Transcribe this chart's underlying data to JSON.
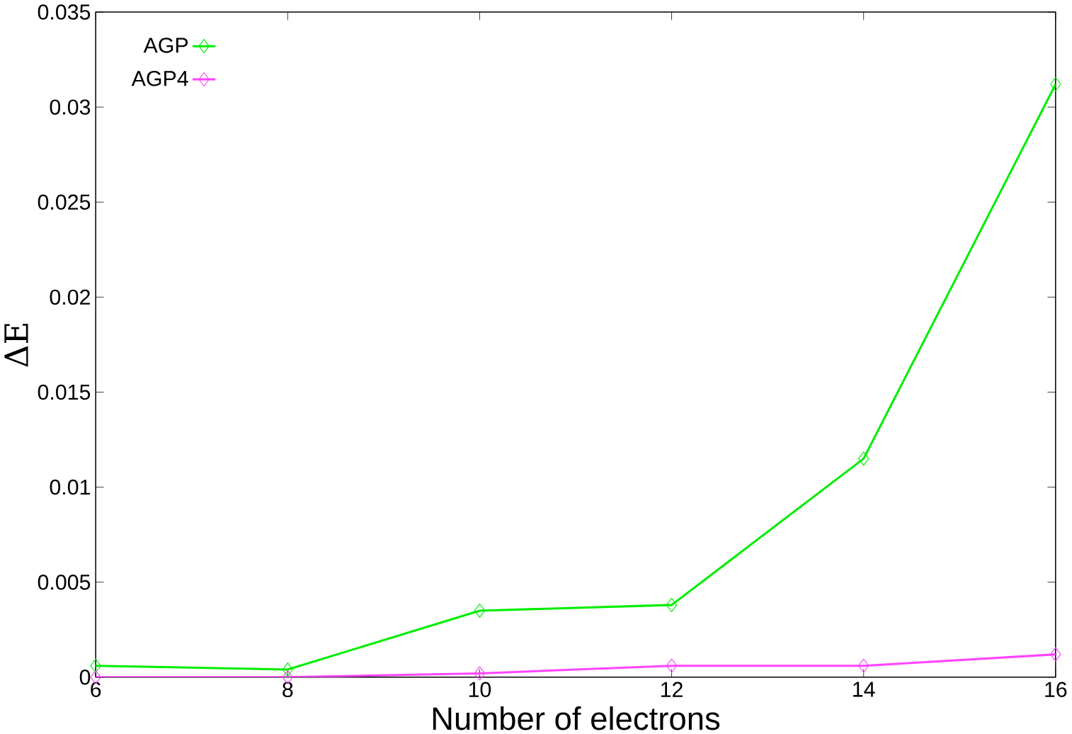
{
  "chart_data": {
    "type": "line",
    "xlabel": "Number of electrons",
    "ylabel": "ΔE",
    "x": [
      6,
      8,
      10,
      12,
      14,
      16
    ],
    "series": [
      {
        "name": "AGP",
        "color": "#00ee00",
        "values": [
          0.0006,
          0.0004,
          0.0035,
          0.0038,
          0.0115,
          0.0312
        ]
      },
      {
        "name": "AGP4",
        "color": "#ff44ff",
        "values": [
          0,
          0,
          0.0002,
          0.0006,
          0.0006,
          0.0012
        ]
      }
    ],
    "xlim": [
      6,
      16
    ],
    "xticks": [
      6,
      8,
      10,
      12,
      14,
      16
    ],
    "ylim": [
      0,
      0.035
    ],
    "yticks": [
      0,
      0.005,
      0.01,
      0.015,
      0.02,
      0.025,
      0.03,
      0.035
    ],
    "grid": false,
    "legend": "top left",
    "marker": "diamond",
    "line_style": "solid"
  }
}
